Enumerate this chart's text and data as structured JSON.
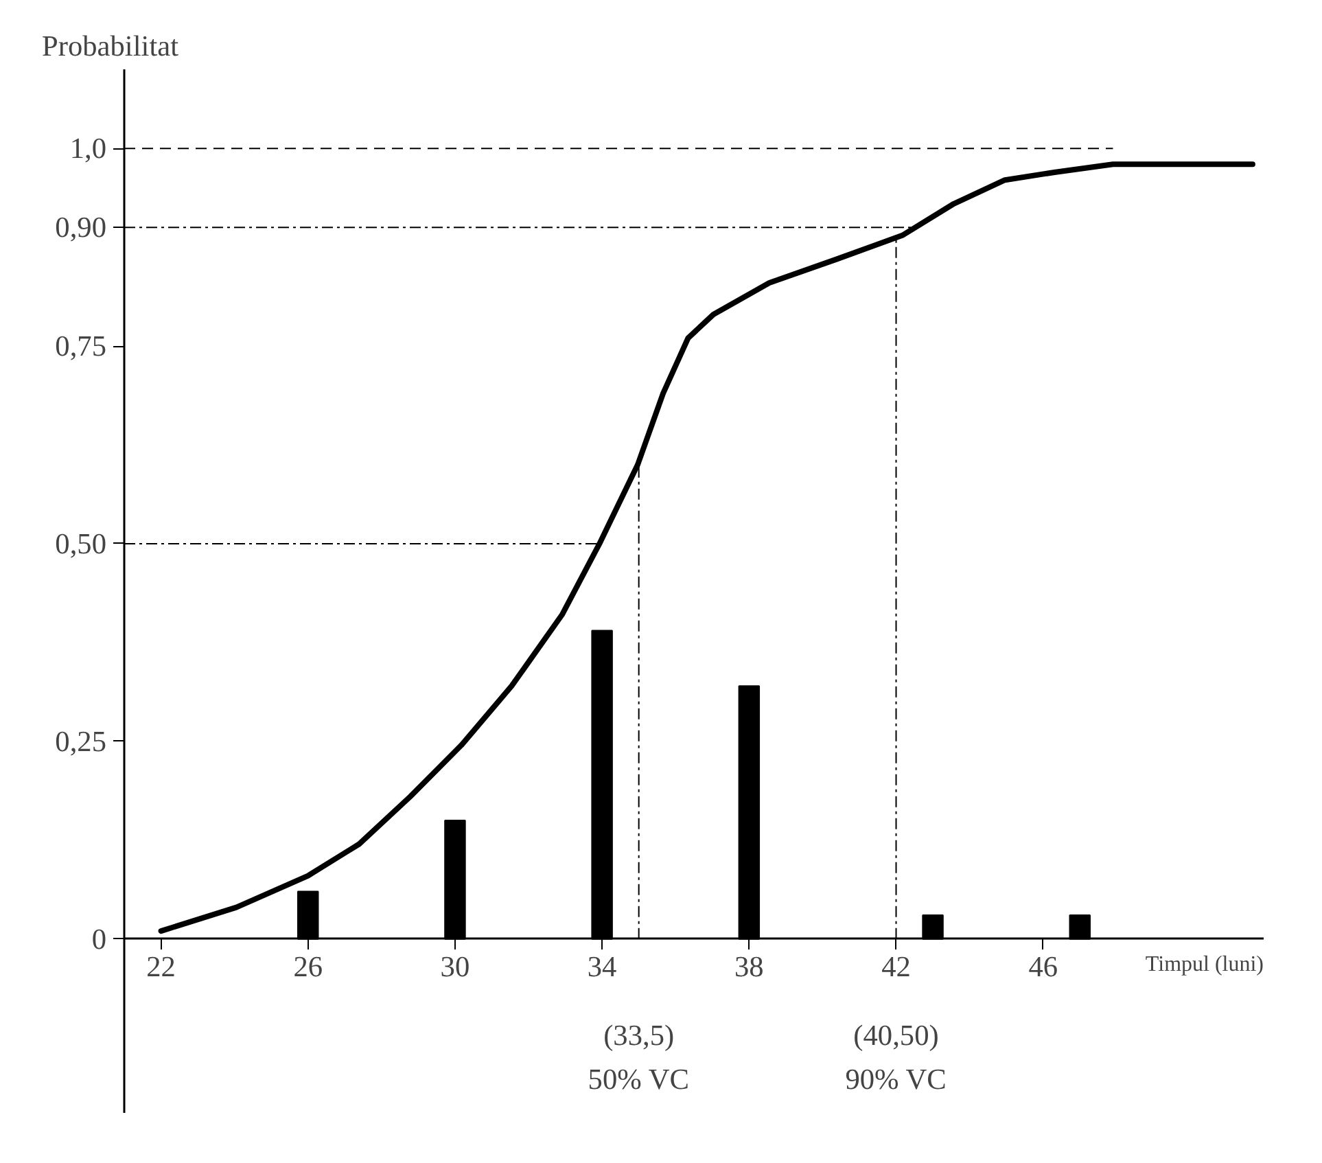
{
  "chart_data": {
    "type": "line",
    "xlabel": "Timpul (luni)",
    "ylabel": "Probabilitat",
    "xlim": [
      21,
      52
    ],
    "ylim": [
      -0.22,
      1.1
    ],
    "xticks": [
      22,
      26,
      30,
      34,
      38,
      42,
      46
    ],
    "yticks": [
      {
        "value": 0,
        "label": "0"
      },
      {
        "value": 0.25,
        "label": "0,25"
      },
      {
        "value": 0.5,
        "label": "0,50"
      },
      {
        "value": 0.75,
        "label": "0,75"
      },
      {
        "value": 0.9,
        "label": "0,90"
      },
      {
        "value": 1.0,
        "label": "1,0"
      }
    ],
    "grid": false,
    "series": [
      {
        "type": "bar",
        "color": "#000000",
        "x": [
          26,
          30,
          34,
          38,
          43,
          47
        ],
        "values": [
          0.06,
          0.15,
          0.39,
          0.32,
          0.03,
          0.03
        ]
      },
      {
        "color": "#000000",
        "x": [
          22,
          24.05,
          26,
          27.39,
          28.78,
          30.17,
          31.54,
          32.91,
          33.93,
          34.97,
          35.66,
          36.34,
          37.03,
          38.55,
          40.39,
          42.17,
          43.57,
          44.96,
          46.34,
          47.9,
          48.4,
          51.7
        ],
        "values": [
          0.01,
          0.04,
          0.08,
          0.12,
          0.18,
          0.245,
          0.32,
          0.41,
          0.5,
          0.6,
          0.69,
          0.76,
          0.79,
          0.83,
          0.86,
          0.89,
          0.93,
          0.96,
          0.97,
          0.98,
          0.98,
          0.98
        ]
      }
    ],
    "ref_lines": [
      {
        "axis": "y",
        "value": 1.0,
        "line_style": "dashed"
      },
      {
        "axis": "y",
        "value": 0.9,
        "line_style": "dashdot"
      },
      {
        "axis": "y",
        "value": 0.5,
        "line_style": "dashdot"
      },
      {
        "axis": "x",
        "value": 35,
        "line_style": "dashdot"
      },
      {
        "axis": "x",
        "value": 42,
        "line_style": "dashdot"
      }
    ],
    "annotations": [
      "(33,5)",
      "50% VC",
      "(40,50)",
      "90% VC"
    ]
  }
}
